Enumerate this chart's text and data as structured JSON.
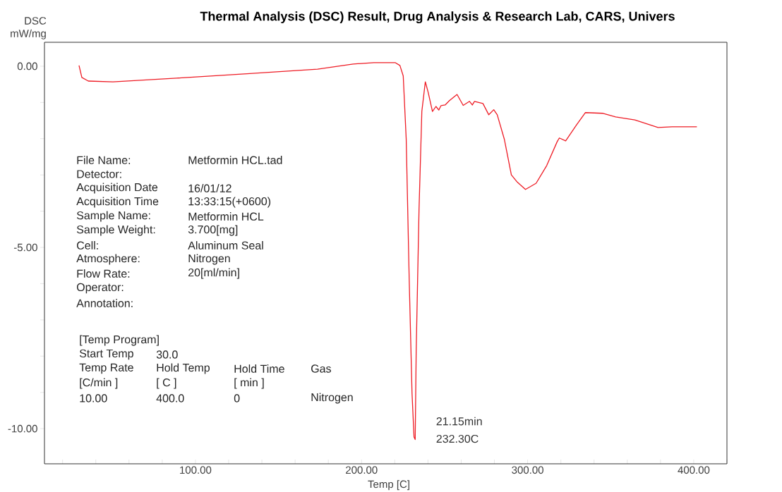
{
  "chart_data": {
    "type": "line",
    "title": "Thermal Analysis (DSC) Result, Drug Analysis & Research Lab, CARS, Univers",
    "xlabel": "Temp  [C]",
    "ylabel": "DSC mW/mg",
    "color": "#ee1c25",
    "marker": "none",
    "line_style": "solid",
    "grid": false,
    "x": [
      29.9,
      31.6,
      35.5,
      50.3,
      88.5,
      131,
      173.5,
      194.9,
      207.4,
      220.2,
      223.1,
      225.1,
      226.9,
      228.7,
      230.4,
      231.6,
      232.3,
      232.9,
      234.6,
      236.3,
      238.4,
      240.1,
      242.7,
      244.8,
      246.5,
      247.8,
      250.3,
      252.9,
      257.5,
      261.2,
      265.0,
      266.7,
      268.0,
      273.1,
      276.6,
      279.6,
      281.7,
      286.0,
      290.2,
      293.6,
      298.7,
      305.1,
      311.5,
      317.8,
      319.1,
      322.9,
      329.3,
      334.8,
      345.4,
      353.0,
      364.5,
      374.3,
      378.5,
      387.0,
      401.9
    ],
    "values": [
      0.02,
      -0.31,
      -0.41,
      -0.43,
      -0.33,
      -0.21,
      -0.08,
      0.06,
      0.1,
      0.1,
      0.02,
      -0.27,
      -2.02,
      -5.9,
      -9.03,
      -10.23,
      -10.3,
      -7.86,
      -3.97,
      -1.25,
      -0.43,
      -0.72,
      -1.25,
      -1.11,
      -1.21,
      -1.09,
      -1.07,
      -0.95,
      -0.78,
      -1.08,
      -0.97,
      -1.07,
      -0.97,
      -1.03,
      -1.34,
      -1.2,
      -1.34,
      -2.02,
      -3.0,
      -3.19,
      -3.4,
      -3.23,
      -2.74,
      -2.08,
      -1.98,
      -2.06,
      -1.63,
      -1.28,
      -1.3,
      -1.4,
      -1.48,
      -1.63,
      -1.69,
      -1.67,
      -1.67
    ],
    "xlim": [
      9.1,
      420
    ],
    "ylim": [
      -10.97,
      0.66
    ],
    "xticks": [
      {
        "value": 20,
        "label": null
      },
      {
        "value": 40,
        "label": null
      },
      {
        "value": 60,
        "label": null
      },
      {
        "value": 80,
        "label": null
      },
      {
        "value": 100,
        "label": "100.00"
      },
      {
        "value": 120,
        "label": null
      },
      {
        "value": 140,
        "label": null
      },
      {
        "value": 160,
        "label": null
      },
      {
        "value": 180,
        "label": null
      },
      {
        "value": 200,
        "label": "200.00"
      },
      {
        "value": 220,
        "label": null
      },
      {
        "value": 240,
        "label": null
      },
      {
        "value": 260,
        "label": null
      },
      {
        "value": 280,
        "label": null
      },
      {
        "value": 300,
        "label": "300.00"
      },
      {
        "value": 320,
        "label": null
      },
      {
        "value": 340,
        "label": null
      },
      {
        "value": 360,
        "label": null
      },
      {
        "value": 380,
        "label": null
      },
      {
        "value": 400,
        "label": "400.00"
      },
      {
        "value": 420,
        "label": null
      }
    ],
    "yticks": [
      {
        "value": 0,
        "label": "0.00"
      },
      {
        "value": -1,
        "label": null
      },
      {
        "value": -2,
        "label": null
      },
      {
        "value": -3,
        "label": null
      },
      {
        "value": -4,
        "label": null
      },
      {
        "value": -5,
        "label": "-5.00"
      },
      {
        "value": -6,
        "label": null
      },
      {
        "value": -7,
        "label": null
      },
      {
        "value": -8,
        "label": null
      },
      {
        "value": -9,
        "label": null
      },
      {
        "value": -10,
        "label": "-10.00"
      }
    ],
    "annotations": [
      "File Name:",
      "Metformin HCL.tad",
      "Detector:",
      "Acquisition Date",
      "16/01/12",
      "Acquisition Time",
      "13:33:15(+0600)",
      "Sample Name:",
      "Metformin HCL",
      "Sample Weight:",
      "3.700[mg]",
      "Cell:",
      "Aluminum Seal",
      "Atmosphere:",
      "Nitrogen",
      "Flow Rate:",
      "20[ml/min]",
      "Operator:",
      "Annotation:",
      "[Temp Program]",
      "Start Temp",
      "30.0",
      "Temp Rate",
      "Hold Temp",
      "Hold Time",
      "Gas",
      "[C/min ]",
      "[  C  ]",
      "[  min  ]",
      "10.00",
      "400.0",
      "0",
      "Nitrogen",
      {
        "text": "21.15min",
        "x": 232.3,
        "y": -10.3
      },
      {
        "text": "232.30C",
        "x": 232.3,
        "y": -10.3
      }
    ]
  }
}
